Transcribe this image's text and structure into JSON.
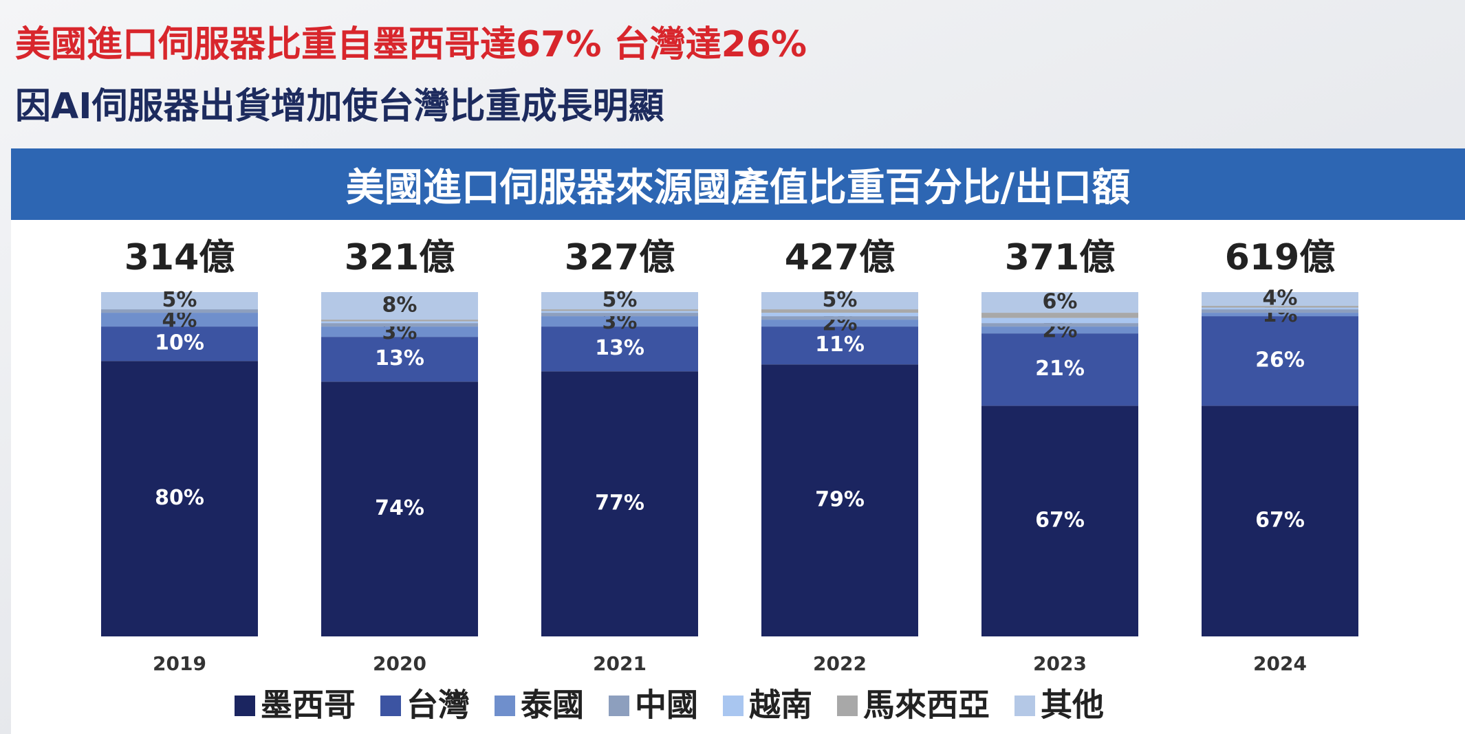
{
  "headline": {
    "line1": "美國進口伺服器比重自墨西哥達67% 台灣達26%",
    "line2": "因AI伺服器出貨增加使台灣比重成長明顯"
  },
  "chart_data": {
    "type": "stacked_bar",
    "title": "美國進口伺服器來源國產值比重百分比/出口額",
    "categories": [
      "2019",
      "2020",
      "2021",
      "2022",
      "2023",
      "2024"
    ],
    "ylim": [
      0,
      100
    ],
    "totals": {
      "values": [
        314,
        321,
        327,
        427,
        371,
        619
      ],
      "value_labels": [
        "314億",
        "321億",
        "327億",
        "427億",
        "371億",
        "619億"
      ]
    },
    "series": [
      {
        "name": "墨西哥",
        "color": "#1b2560",
        "values": [
          80,
          74,
          77,
          79,
          67,
          67
        ],
        "value_labels": [
          "80%",
          "74%",
          "77%",
          "79%",
          "67%",
          "67%"
        ]
      },
      {
        "name": "台灣",
        "color": "#3c54a2",
        "values": [
          10,
          13,
          13,
          11,
          21,
          26
        ],
        "value_labels": [
          "10%",
          "13%",
          "13%",
          "11%",
          "21%",
          "26%"
        ]
      },
      {
        "name": "泰國",
        "color": "#6f8fcc",
        "values": [
          4,
          3,
          3,
          2,
          2,
          1
        ],
        "value_labels": [
          "4%",
          "3%",
          "3%",
          "2%",
          "2%",
          "1%"
        ]
      },
      {
        "name": "中國",
        "color": "#8d9fbe",
        "values": [
          1,
          1,
          1,
          1,
          1,
          1
        ]
      },
      {
        "name": "越南",
        "color": "#a9c6f0",
        "values": [
          0,
          0.5,
          0.5,
          1,
          1.5,
          0.5
        ]
      },
      {
        "name": "馬來西亞",
        "color": "#a8a8a8",
        "values": [
          0,
          0.5,
          0.5,
          1,
          1.5,
          0.5
        ]
      },
      {
        "name": "其他",
        "color": "#b4c8e6",
        "values": [
          5,
          8,
          5,
          5,
          6,
          4
        ],
        "value_labels": [
          "5%",
          "8%",
          "5%",
          "5%",
          "6%",
          "4%"
        ]
      }
    ]
  }
}
